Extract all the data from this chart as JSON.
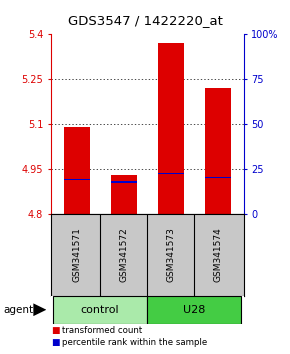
{
  "title": "GDS3547 / 1422220_at",
  "samples": [
    "GSM341571",
    "GSM341572",
    "GSM341573",
    "GSM341574"
  ],
  "bar_bottom": 4.8,
  "bar_tops": [
    5.09,
    4.93,
    5.37,
    5.22
  ],
  "percentile_values": [
    4.915,
    4.906,
    4.935,
    4.922
  ],
  "percentile_thickness": 0.006,
  "ylim": [
    4.8,
    5.4
  ],
  "yticks": [
    4.8,
    4.95,
    5.1,
    5.25,
    5.4
  ],
  "right_yticks_pct": [
    0,
    25,
    50,
    75,
    100
  ],
  "right_ylabels": [
    "0",
    "25",
    "50",
    "75",
    "100%"
  ],
  "bar_color": "#dd0000",
  "percentile_color": "#0000cc",
  "bar_width": 0.55,
  "left_axis_color": "#dd0000",
  "right_axis_color": "#0000cc",
  "bg_labels": "#c8c8c8",
  "bg_group_control": "#aaeaaa",
  "bg_group_u28": "#44cc44",
  "agent_label": "agent",
  "groups": [
    {
      "label": "control",
      "cols": [
        0,
        1
      ]
    },
    {
      "label": "U28",
      "cols": [
        2,
        3
      ]
    }
  ],
  "legend_items": [
    {
      "label": "transformed count",
      "color": "#dd0000"
    },
    {
      "label": "percentile rank within the sample",
      "color": "#0000cc"
    }
  ]
}
